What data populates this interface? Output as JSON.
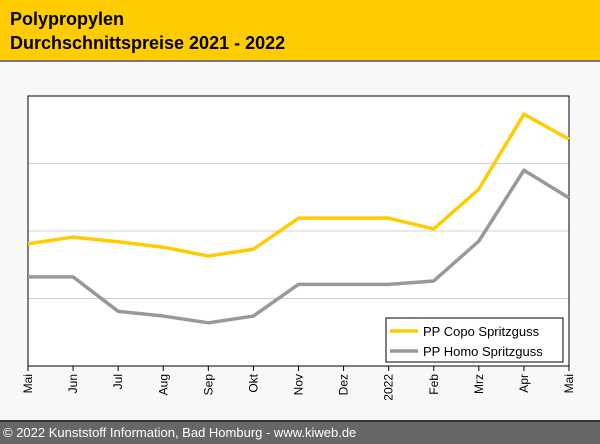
{
  "header": {
    "title": "Polypropylen",
    "subtitle": "Durchschnittspreise 2021 - 2022"
  },
  "footer": {
    "text": "© 2022 Kunststoff Information, Bad Homburg - www.kiweb.de"
  },
  "chart_data": {
    "type": "line",
    "title": "Polypropylen Durchschnittspreise 2021 - 2022",
    "xlabel": "",
    "ylabel": "",
    "categories": [
      "Mai",
      "Jun",
      "Jul",
      "Aug",
      "Sep",
      "Okt",
      "Nov",
      "Dez",
      "2022",
      "Feb",
      "Mrz",
      "Apr",
      "Mai"
    ],
    "ylim": [
      0,
      4
    ],
    "grid": true,
    "legend_position": "bottom-right",
    "series": [
      {
        "name": "PP Copo Spritzguss",
        "color": "#ffcc00",
        "values": [
          1.81,
          1.91,
          1.84,
          1.76,
          1.63,
          1.73,
          2.19,
          2.19,
          2.19,
          2.03,
          2.62,
          3.73,
          3.36
        ]
      },
      {
        "name": "PP Homo Spritzguss",
        "color": "#999999",
        "values": [
          1.32,
          1.32,
          0.81,
          0.74,
          0.64,
          0.74,
          1.21,
          1.21,
          1.21,
          1.26,
          1.85,
          2.9,
          2.49
        ]
      }
    ]
  }
}
